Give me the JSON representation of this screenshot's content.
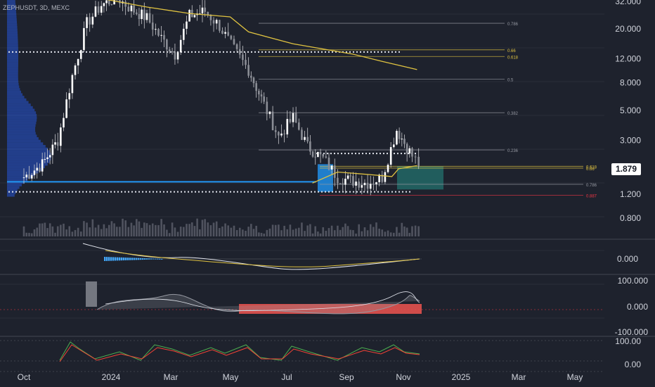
{
  "header": {
    "symbol_line": "ZEPHUSDT, 3D, MEXC"
  },
  "colors": {
    "background": "#1e222d",
    "grid": "#2a2e39",
    "candle": "#c8c8cc",
    "volume": "#5d606b",
    "ma_line": "#e0c341",
    "fib_line": "#9598a1",
    "profile_blue": "#2962ff",
    "poc_blue": "#2196f3",
    "green_zone": "#26a69a",
    "red_fib": "#f23645",
    "macd_hist": "#42a5f5",
    "oscillator_red": "#ef5350",
    "stoch_green": "#4caf50",
    "stoch_red": "#f44336"
  },
  "chart_data": {
    "type": "candlestick",
    "symbol": "ZEPHUSDT",
    "timeframe": "3D",
    "exchange": "MEXC",
    "scale": "log",
    "last_price": "1.879",
    "y_ticks": [
      "32.000",
      "20.000",
      "12.000",
      "8.000",
      "5.000",
      "3.000",
      "1.200",
      "0.800"
    ],
    "x_ticks": [
      "Oct",
      "2024",
      "Mar",
      "May",
      "Jul",
      "Sep",
      "Nov",
      "2025",
      "Mar",
      "May"
    ],
    "fib_upper": [
      {
        "label": "0.786",
        "value": 22
      },
      {
        "label": "0.66",
        "value": 14
      },
      {
        "label": "0.618",
        "value": 12.5
      },
      {
        "label": "0.5",
        "value": 8.5
      },
      {
        "label": "0.382",
        "value": 4.8
      },
      {
        "label": "0.236",
        "value": 2.55
      }
    ],
    "fib_lower": [
      {
        "label": "0.618",
        "value": 1.93
      },
      {
        "label": "0.66",
        "value": 1.87
      },
      {
        "label": "0.786",
        "value": 1.42
      },
      {
        "label": "0.887",
        "value": 1.18
      }
    ],
    "close_series": [
      {
        "date": "2023-10-01",
        "close": 1.6
      },
      {
        "date": "2023-10-20",
        "close": 2.0
      },
      {
        "date": "2023-11-05",
        "close": 3.0
      },
      {
        "date": "2023-11-20",
        "close": 9.0
      },
      {
        "date": "2023-12-05",
        "close": 22.0
      },
      {
        "date": "2023-12-20",
        "close": 30.0
      },
      {
        "date": "2024-01-05",
        "close": 34.0
      },
      {
        "date": "2024-01-20",
        "close": 28.0
      },
      {
        "date": "2024-02-05",
        "close": 24.0
      },
      {
        "date": "2024-02-20",
        "close": 17.0
      },
      {
        "date": "2024-03-05",
        "close": 13.0
      },
      {
        "date": "2024-03-20",
        "close": 25.0
      },
      {
        "date": "2024-04-05",
        "close": 27.0
      },
      {
        "date": "2024-04-20",
        "close": 21.0
      },
      {
        "date": "2024-05-05",
        "close": 14.0
      },
      {
        "date": "2024-05-20",
        "close": 10.0
      },
      {
        "date": "2024-06-05",
        "close": 5.5
      },
      {
        "date": "2024-06-20",
        "close": 3.2
      },
      {
        "date": "2024-07-05",
        "close": 4.4
      },
      {
        "date": "2024-07-20",
        "close": 2.7
      },
      {
        "date": "2024-08-05",
        "close": 2.2
      },
      {
        "date": "2024-08-20",
        "close": 1.6
      },
      {
        "date": "2024-09-05",
        "close": 1.5
      },
      {
        "date": "2024-09-20",
        "close": 1.45
      },
      {
        "date": "2024-10-05",
        "close": 1.6
      },
      {
        "date": "2024-10-20",
        "close": 3.6
      },
      {
        "date": "2024-11-05",
        "close": 2.3
      },
      {
        "date": "2024-11-15",
        "close": 1.879
      }
    ],
    "ma_series": [
      {
        "date": "2023-12-25",
        "value": 33.0
      },
      {
        "date": "2024-02-05",
        "value": 29.0
      },
      {
        "date": "2024-03-20",
        "value": 26.0
      },
      {
        "date": "2024-05-01",
        "value": 24.5
      },
      {
        "date": "2024-05-20",
        "value": 19.0
      },
      {
        "date": "2024-07-05",
        "value": 15.5
      },
      {
        "date": "2024-09-05",
        "value": 13.0
      },
      {
        "date": "2024-10-05",
        "value": 11.5
      },
      {
        "date": "2024-11-10",
        "value": 10.0
      }
    ],
    "short_ma_series": [
      {
        "date": "2024-07-25",
        "value": 1.45
      },
      {
        "date": "2024-08-20",
        "value": 1.75
      },
      {
        "date": "2024-09-20",
        "value": 1.68
      },
      {
        "date": "2024-10-15",
        "value": 1.62
      },
      {
        "date": "2024-10-22",
        "value": 1.85
      },
      {
        "date": "2024-11-10",
        "value": 1.95
      }
    ],
    "indicators": {
      "macd_ticks": [
        "0.000"
      ],
      "oscillator_ticks": [
        "100.000",
        "0.000",
        "-100.000"
      ],
      "stoch_ticks": [
        "100.00",
        "0.00"
      ]
    }
  }
}
